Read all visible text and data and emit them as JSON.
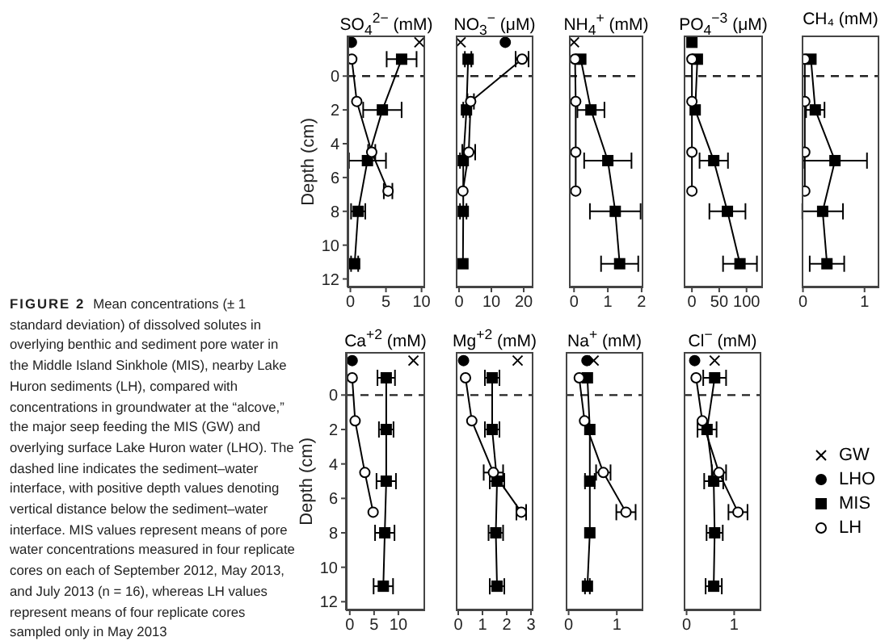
{
  "chart_data": [
    {
      "type": "line",
      "title": "SO$_{4}$$^{2−}$ (mM)",
      "ylabel": "Depth (cm)",
      "xlim": [
        -0.4,
        10.5
      ],
      "xticks": [
        0,
        5,
        10
      ],
      "ylim": [
        12.5,
        -2.4
      ],
      "yticks": [
        0,
        2,
        4,
        6,
        8,
        10,
        12
      ],
      "ref_lines": [
        {
          "axis": "y",
          "value": 0,
          "line_style": "dashed"
        }
      ],
      "series": [
        {
          "type": "scatter",
          "marker": "cross",
          "color": "#000000",
          "x": [
            9.7
          ],
          "values": [
            -2
          ]
        },
        {
          "type": "scatter",
          "marker": "circle",
          "color": "#000000",
          "x": [
            0.15
          ],
          "values": [
            -2
          ]
        },
        {
          "type": "line",
          "marker": "square",
          "color": "#000000",
          "x": [
            7.2,
            4.5,
            2.4,
            1.1,
            0.6
          ],
          "values": [
            -1,
            2,
            5,
            8,
            11.1
          ],
          "xerrors": [
            2.1,
            2.7,
            2.6,
            1.0,
            0.5
          ]
        },
        {
          "type": "line",
          "marker": "circle",
          "color": "#000000",
          "x": [
            0.2,
            0.9,
            3.0,
            5.3
          ],
          "values": [
            -1,
            1.5,
            4.5,
            6.8
          ],
          "xerrors": [
            null,
            null,
            0.5,
            0.6
          ]
        }
      ]
    },
    {
      "type": "line",
      "title": "NO$_{3}$$^{−}$ (μM)",
      "tick_labels": "x",
      "xlim": [
        -1,
        23
      ],
      "xticks": [
        0,
        10,
        20
      ],
      "ylim": [
        12.5,
        -2.4
      ],
      "ref_lines": [
        {
          "axis": "y",
          "value": 0,
          "line_style": "dashed"
        }
      ],
      "series": [
        {
          "type": "scatter",
          "marker": "cross",
          "color": "#000000",
          "x": [
            0.5
          ],
          "values": [
            -2
          ]
        },
        {
          "type": "scatter",
          "marker": "circle",
          "color": "#000000",
          "x": [
            14.3
          ],
          "values": [
            -2
          ]
        },
        {
          "type": "line",
          "marker": "square",
          "color": "#000000",
          "x": [
            2.8,
            2.3,
            1.3,
            1.3,
            1.2
          ],
          "values": [
            -1,
            2,
            5,
            8,
            11.1
          ],
          "xerrors": [
            1,
            1,
            1,
            1,
            null
          ]
        },
        {
          "type": "line",
          "marker": "circle",
          "color": "#000000",
          "x": [
            19.5,
            3.6,
            3.0,
            1.2
          ],
          "values": [
            -1,
            1.5,
            4.5,
            6.8
          ],
          "xerrors": [
            2,
            1,
            2,
            null
          ]
        }
      ]
    },
    {
      "type": "line",
      "title": "NH$_{4}$$^{+}$ (mM)",
      "tick_labels": "x",
      "xlim": [
        -0.15,
        2.05
      ],
      "xticks": [
        0,
        1,
        2
      ],
      "ylim": [
        12.5,
        -2.4
      ],
      "ref_lines": [
        {
          "axis": "y",
          "value": 0,
          "line_style": "dashed"
        }
      ],
      "series": [
        {
          "type": "scatter",
          "marker": "cross",
          "color": "#000000",
          "x": [
            0
          ],
          "values": [
            -2
          ]
        },
        {
          "type": "line",
          "marker": "square",
          "color": "#000000",
          "x": [
            0.2,
            0.5,
            1.0,
            1.22,
            1.35
          ],
          "values": [
            -1,
            2,
            5,
            8,
            11.1
          ],
          "xerrors": [
            null,
            0.4,
            0.7,
            0.75,
            0.55
          ]
        },
        {
          "type": "line",
          "marker": "circle",
          "color": "#000000",
          "x": [
            0.03,
            0.05,
            0.05,
            0.05
          ],
          "values": [
            -1,
            1.5,
            4.5,
            6.8
          ]
        }
      ]
    },
    {
      "type": "line",
      "title": "PO$_{4}$$^{−3}$ (μM)",
      "tick_labels": "x",
      "xlim": [
        -15,
        130
      ],
      "xticks": [
        0,
        50,
        100
      ],
      "ylim": [
        12.5,
        -2.4
      ],
      "ref_lines": [
        {
          "axis": "y",
          "value": 0,
          "line_style": "dashed"
        }
      ],
      "series": [
        {
          "type": "scatter",
          "marker": "square",
          "color": "#000000",
          "x": [
            0
          ],
          "values": [
            -2
          ]
        },
        {
          "type": "line",
          "marker": "square",
          "color": "#000000",
          "x": [
            10,
            6,
            40,
            65,
            88
          ],
          "values": [
            -1,
            2,
            5,
            8,
            11.1
          ],
          "xerrors": [
            null,
            null,
            26,
            33,
            31
          ]
        },
        {
          "type": "line",
          "marker": "circle",
          "color": "#000000",
          "x": [
            0,
            0,
            0,
            0
          ],
          "values": [
            -1,
            1.5,
            4.5,
            6.8
          ]
        }
      ]
    },
    {
      "type": "line",
      "title": "CH₄ (mM)",
      "tick_labels": "x",
      "xlim": [
        -0.02,
        1.24
      ],
      "xticks": [
        0,
        1
      ],
      "ylim": [
        12.5,
        -2.4
      ],
      "ref_lines": [
        {
          "axis": "y",
          "value": 0,
          "line_style": "dashed"
        }
      ],
      "series": [
        {
          "type": "line",
          "marker": "square",
          "color": "#000000",
          "x": [
            0.13,
            0.2,
            0.52,
            0.32,
            0.39
          ],
          "values": [
            -1,
            2,
            5,
            8,
            11.1
          ],
          "xerrors": [
            null,
            0.15,
            0.52,
            0.33,
            0.28
          ]
        },
        {
          "type": "line",
          "marker": "circle",
          "color": "#000000",
          "x": [
            0.03,
            0.03,
            0.03,
            0.03
          ],
          "values": [
            -1,
            1.5,
            4.5,
            6.8
          ]
        }
      ]
    },
    {
      "type": "line",
      "title": "Ca$^{+2}$ (mM)",
      "ylabel": "Depth (cm)",
      "xlim": [
        -0.8,
        15.5
      ],
      "xticks": [
        0,
        5,
        10
      ],
      "ylim": [
        12.5,
        -2.5
      ],
      "yticks": [
        0,
        2,
        4,
        6,
        8,
        10,
        12
      ],
      "ref_lines": [
        {
          "axis": "y",
          "value": 0,
          "line_style": "dashed"
        }
      ],
      "series": [
        {
          "type": "scatter",
          "marker": "cross",
          "color": "#000000",
          "x": [
            13.1
          ],
          "values": [
            -2
          ]
        },
        {
          "type": "scatter",
          "marker": "circle",
          "color": "#000000",
          "x": [
            0.5
          ],
          "values": [
            -2
          ]
        },
        {
          "type": "line",
          "marker": "square",
          "color": "#000000",
          "x": [
            7.5,
            7.5,
            7.5,
            7.2,
            6.9
          ],
          "values": [
            -1,
            2,
            5,
            8,
            11.1
          ],
          "xerrors": [
            1.8,
            1.5,
            2,
            2,
            2
          ]
        },
        {
          "type": "line",
          "marker": "circle",
          "color": "#000000",
          "x": [
            0.5,
            1.1,
            3.1,
            4.8
          ],
          "values": [
            -1,
            1.5,
            4.5,
            6.8
          ]
        }
      ]
    },
    {
      "type": "line",
      "title": "Mg$^{+2}$ (mM)",
      "tick_labels": "x",
      "xlim": [
        -0.1,
        3.1
      ],
      "xticks": [
        0,
        1,
        2,
        3
      ],
      "ylim": [
        12.5,
        -2.5
      ],
      "ref_lines": [
        {
          "axis": "y",
          "value": 0,
          "line_style": "dashed"
        }
      ],
      "series": [
        {
          "type": "scatter",
          "marker": "cross",
          "color": "#000000",
          "x": [
            2.45
          ],
          "values": [
            -2
          ]
        },
        {
          "type": "scatter",
          "marker": "circle",
          "color": "#000000",
          "x": [
            0.22
          ],
          "values": [
            -2
          ]
        },
        {
          "type": "line",
          "marker": "square",
          "color": "#000000",
          "x": [
            1.4,
            1.4,
            1.6,
            1.55,
            1.6
          ],
          "values": [
            -1,
            2,
            5,
            8,
            11.1
          ],
          "xerrors": [
            0.3,
            0.3,
            0.3,
            0.3,
            0.3
          ]
        },
        {
          "type": "line",
          "marker": "circle",
          "color": "#000000",
          "x": [
            0.3,
            0.56,
            1.45,
            2.6
          ],
          "values": [
            -1,
            1.5,
            4.5,
            6.8
          ],
          "xerrors": [
            null,
            null,
            0.4,
            0.2
          ]
        }
      ]
    },
    {
      "type": "line",
      "title": "Na$^{+}$ (mM)",
      "tick_labels": "x",
      "xlim": [
        -0.06,
        1.55
      ],
      "xticks": [
        0,
        1
      ],
      "ylim": [
        12.5,
        -2.5
      ],
      "ref_lines": [
        {
          "axis": "y",
          "value": 0,
          "line_style": "dashed"
        }
      ],
      "series": [
        {
          "type": "scatter",
          "marker": "cross",
          "color": "#000000",
          "x": [
            0.52
          ],
          "values": [
            -2
          ]
        },
        {
          "type": "scatter",
          "marker": "circle",
          "color": "#000000",
          "x": [
            0.38
          ],
          "values": [
            -2
          ]
        },
        {
          "type": "line",
          "marker": "square",
          "color": "#000000",
          "x": [
            0.39,
            0.44,
            0.44,
            0.44,
            0.39
          ],
          "values": [
            -1,
            2,
            5,
            8,
            11.1
          ],
          "xerrors": [
            null,
            null,
            0.1,
            null,
            0.05
          ]
        },
        {
          "type": "line",
          "marker": "circle",
          "color": "#000000",
          "x": [
            0.22,
            0.33,
            0.72,
            1.19
          ],
          "values": [
            -1,
            1.5,
            4.5,
            6.8
          ],
          "xerrors": [
            null,
            null,
            0.15,
            0.2
          ]
        }
      ]
    },
    {
      "type": "line",
      "title": "Cl$^{−}$ (mM)",
      "tick_labels": "x",
      "legend": "right",
      "xlim": [
        -0.06,
        1.57
      ],
      "xticks": [
        0,
        1
      ],
      "ylim": [
        12.5,
        -2.5
      ],
      "ref_lines": [
        {
          "axis": "y",
          "value": 0,
          "line_style": "dashed"
        }
      ],
      "series": [
        {
          "name": "GW",
          "type": "scatter",
          "marker": "cross",
          "color": "#000000",
          "x": [
            0.59
          ],
          "values": [
            -2
          ]
        },
        {
          "name": "LHO",
          "type": "scatter",
          "marker": "circle",
          "color": "#000000",
          "x": [
            0.17
          ],
          "values": [
            -2
          ]
        },
        {
          "name": "MIS",
          "type": "line",
          "marker": "square",
          "color": "#000000",
          "x": [
            0.59,
            0.43,
            0.57,
            0.59,
            0.57
          ],
          "values": [
            -1,
            2,
            5,
            8,
            11.1
          ],
          "xerrors": [
            0.24,
            0.2,
            0.2,
            0.17,
            0.17
          ]
        },
        {
          "name": "LH",
          "type": "line",
          "marker": "circle",
          "color": "#000000",
          "x": [
            0.2,
            0.33,
            0.68,
            1.08
          ],
          "values": [
            -1,
            1.5,
            4.5,
            6.8
          ],
          "xerrors": [
            null,
            null,
            0.15,
            0.2
          ]
        }
      ]
    },
    {
      "type": "other",
      "title": "FIGURE 2",
      "annotations": [
        "Mean concentrations (± 1 standard deviation) of dissolved solutes in overlying benthic and sediment pore water in the Middle Island Sinkhole (MIS), nearby Lake Huron sediments (LH), compared with concentrations in groundwater at the “alcove,” the major seep feeding the MIS (GW) and overlying surface Lake Huron water (LHO). The dashed line indicates the sediment–water interface, with positive depth values denoting vertical distance below the sediment–water interface. MIS values represent means of pore water concentrations measured in four replicate cores on each of September 2012, May 2013, and July 2013 (n = 16), whereas LH values represent means of four replicate cores sampled only in May 2013"
      ]
    }
  ]
}
